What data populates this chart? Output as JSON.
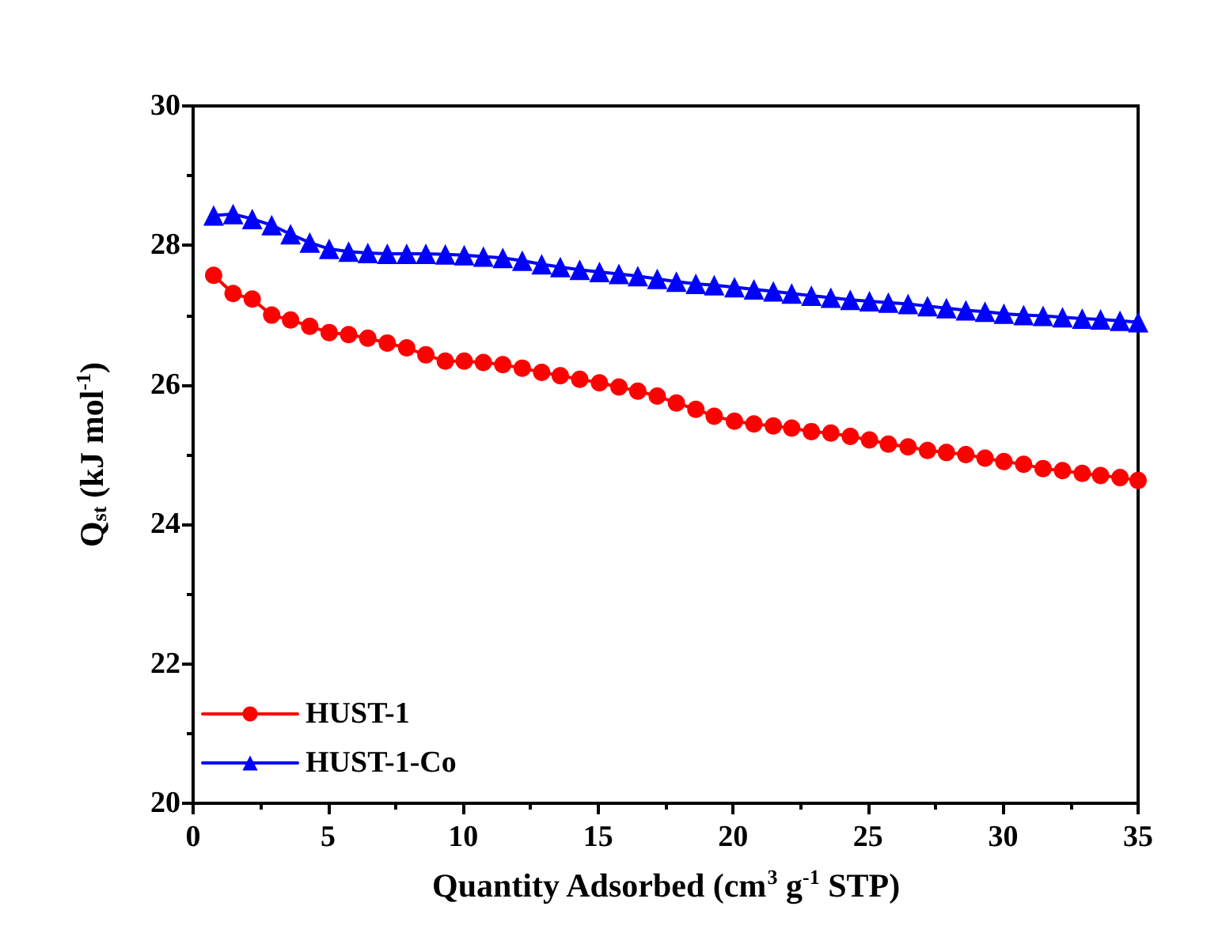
{
  "chart_data": {
    "type": "line",
    "xlabel": "Quantity Adsorbed (cm$^{3}$ g$^{-1}$ STP)",
    "ylabel": "Q$_{st}$ (kJ mol$^{-1}$)",
    "x": [
      0.76,
      1.48,
      2.19,
      2.91,
      3.61,
      4.32,
      5.04,
      5.76,
      6.47,
      7.19,
      7.91,
      8.62,
      9.34,
      10.04,
      10.75,
      11.47,
      12.19,
      12.91,
      13.6,
      14.32,
      15.05,
      15.77,
      16.47,
      17.19,
      17.9,
      18.62,
      19.3,
      20.05,
      20.77,
      21.49,
      22.17,
      22.9,
      23.62,
      24.34,
      25.05,
      25.75,
      26.48,
      27.2,
      27.9,
      28.62,
      29.33,
      30.03,
      30.76,
      31.48,
      32.2,
      32.93,
      33.61,
      34.33,
      35.0
    ],
    "series": [
      {
        "name": "HUST-1",
        "color": "#ff0000",
        "marker": "circle",
        "values": [
          27.57,
          27.31,
          27.23,
          27.0,
          26.93,
          26.84,
          26.75,
          26.72,
          26.67,
          26.6,
          26.53,
          26.43,
          26.34,
          26.34,
          26.32,
          26.29,
          26.24,
          26.18,
          26.13,
          26.08,
          26.03,
          25.97,
          25.91,
          25.84,
          25.74,
          25.65,
          25.55,
          25.48,
          25.44,
          25.41,
          25.38,
          25.33,
          25.31,
          25.26,
          25.21,
          25.15,
          25.11,
          25.06,
          25.03,
          25.0,
          24.95,
          24.9,
          24.86,
          24.8,
          24.77,
          24.73,
          24.7,
          24.67,
          24.63
        ]
      },
      {
        "name": "HUST-1-Co",
        "color": "#0000ff",
        "marker": "triangle",
        "values": [
          28.43,
          28.45,
          28.38,
          28.29,
          28.16,
          28.04,
          27.95,
          27.91,
          27.89,
          27.88,
          27.88,
          27.88,
          27.87,
          27.86,
          27.84,
          27.82,
          27.78,
          27.73,
          27.69,
          27.65,
          27.62,
          27.59,
          27.56,
          27.52,
          27.48,
          27.45,
          27.43,
          27.4,
          27.37,
          27.34,
          27.31,
          27.28,
          27.25,
          27.22,
          27.2,
          27.18,
          27.16,
          27.13,
          27.1,
          27.07,
          27.05,
          27.02,
          27.0,
          26.99,
          26.97,
          26.95,
          26.94,
          26.92,
          26.9
        ]
      }
    ],
    "xlim": [
      0,
      35
    ],
    "xticks": [
      0,
      5,
      10,
      15,
      20,
      25,
      30,
      35
    ],
    "ylim": [
      20,
      30
    ],
    "yticks": [
      20,
      22,
      24,
      26,
      28,
      30
    ],
    "grid": false,
    "legend": "bottom left",
    "line_style": "solid"
  }
}
